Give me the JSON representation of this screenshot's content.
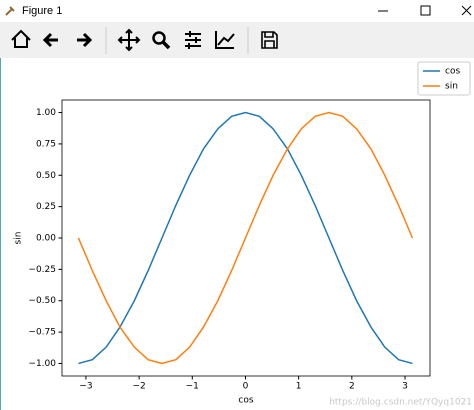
{
  "window": {
    "title": "Figure 1"
  },
  "chart_data": {
    "type": "line",
    "xlabel": "cos",
    "ylabel": "sin",
    "x": [
      -3.14,
      -2.88,
      -2.62,
      -2.36,
      -2.09,
      -1.83,
      -1.57,
      -1.31,
      -1.05,
      -0.79,
      -0.52,
      -0.26,
      0,
      0.26,
      0.52,
      0.79,
      1.05,
      1.31,
      1.57,
      1.83,
      2.09,
      2.36,
      2.62,
      2.88,
      3.14
    ],
    "series": [
      {
        "name": "cos",
        "color": "#1f77b4",
        "values": [
          -1,
          -0.97,
          -0.87,
          -0.71,
          -0.5,
          -0.26,
          0,
          0.26,
          0.5,
          0.71,
          0.87,
          0.97,
          1,
          0.97,
          0.87,
          0.71,
          0.5,
          0.26,
          0,
          -0.26,
          -0.5,
          -0.71,
          -0.87,
          -0.97,
          -1
        ]
      },
      {
        "name": "sin",
        "color": "#ff7f0e",
        "values": [
          0,
          -0.26,
          -0.5,
          -0.71,
          -0.87,
          -0.97,
          -1,
          -0.97,
          -0.87,
          -0.71,
          -0.5,
          -0.26,
          0,
          0.26,
          0.5,
          0.71,
          0.87,
          0.97,
          1,
          0.97,
          0.87,
          0.71,
          0.5,
          0.26,
          0
        ]
      }
    ],
    "xlim": [
      -3.45,
      3.47
    ],
    "ylim": [
      -1.1,
      1.1
    ],
    "xticks": [
      {
        "value": -3,
        "label": "−3"
      },
      {
        "value": -2,
        "label": "−2"
      },
      {
        "value": -1,
        "label": "−1"
      },
      0,
      1,
      2,
      3
    ],
    "yticks": [
      {
        "value": -1,
        "label": "−1.00"
      },
      {
        "value": -0.75,
        "label": "−0.75"
      },
      {
        "value": -0.5,
        "label": "−0.50"
      },
      {
        "value": -0.25,
        "label": "−0.25"
      },
      {
        "value": 0,
        "label": "0.00"
      },
      {
        "value": 0.25,
        "label": "0.25"
      },
      {
        "value": 0.5,
        "label": "0.50"
      },
      {
        "value": 0.75,
        "label": "0.75"
      },
      {
        "value": 1,
        "label": "1.00"
      }
    ],
    "legend": "upper right",
    "watermark": "https://blog.csdn.net/YQyq1021"
  }
}
